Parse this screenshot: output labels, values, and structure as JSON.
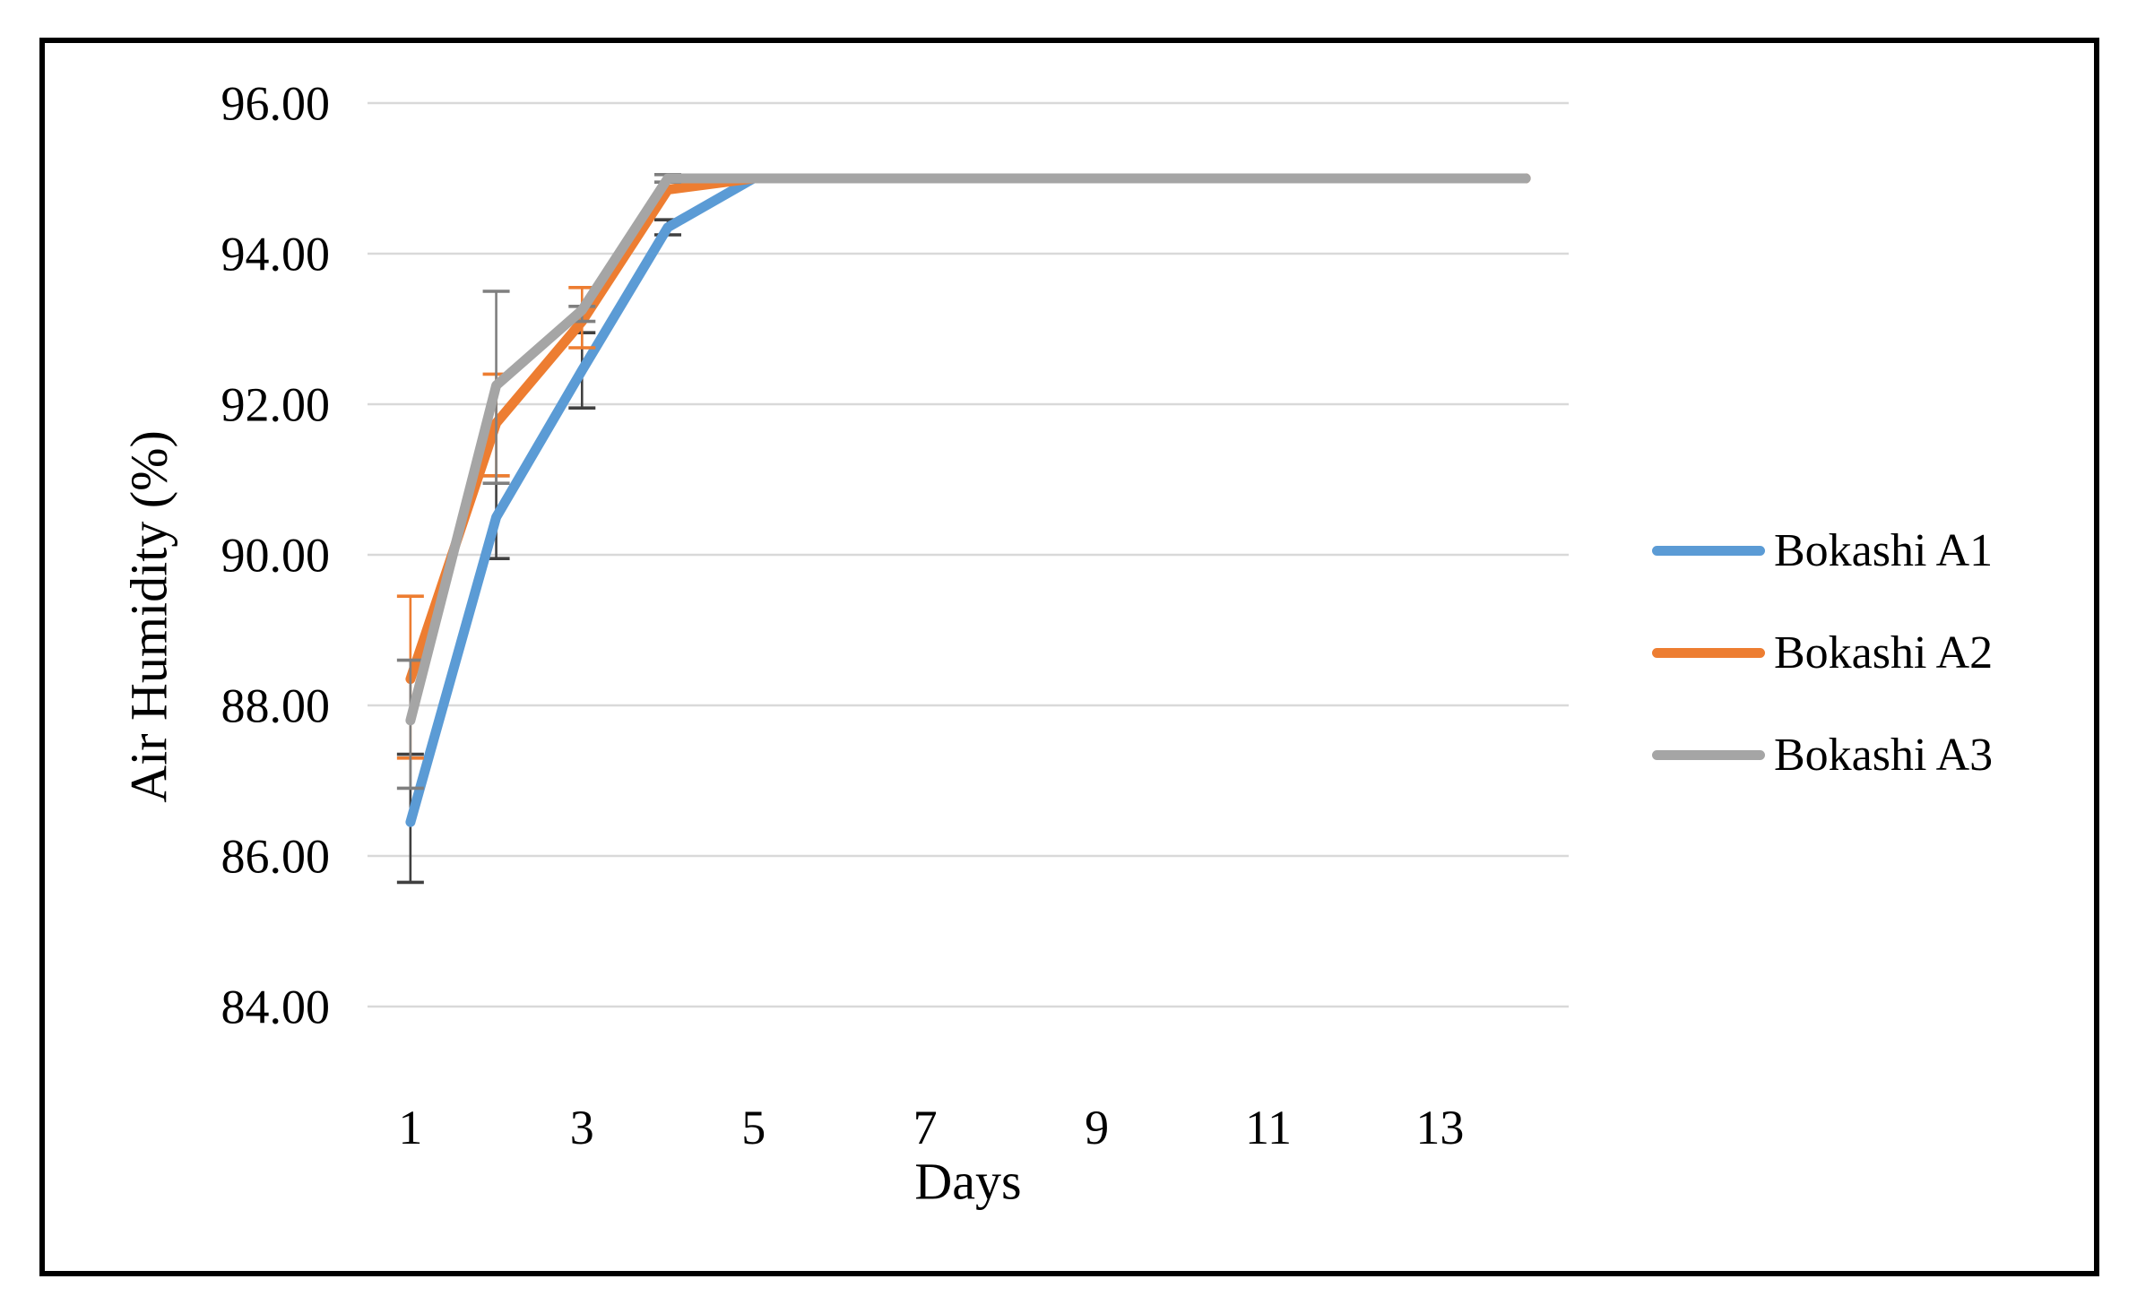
{
  "figure": {
    "background_color": "#FFFFFF",
    "border_color": "#000000"
  },
  "legend": {
    "position": "right"
  },
  "chart_data": {
    "type": "line",
    "title": "",
    "xlabel": "Days",
    "ylabel": "Air Humidity (%)",
    "x": [
      1,
      2,
      3,
      4,
      5,
      6,
      7,
      8,
      9,
      10,
      11,
      12,
      13,
      14
    ],
    "ylim": [
      83,
      96
    ],
    "grid": true,
    "gridline_color": "#D9D9D9",
    "text_color": "#000000",
    "y_gridline_values": [
      84,
      86,
      88,
      90,
      92,
      94,
      96
    ],
    "y_tick_labels": [
      "84.00",
      "86.00",
      "88.00",
      "90.00",
      "92.00",
      "94.00",
      "96.00"
    ],
    "x_tick_values": [
      1,
      3,
      5,
      7,
      9,
      11,
      13
    ],
    "x_tick_labels": [
      "1",
      "3",
      "5",
      "7",
      "9",
      "11",
      "13"
    ],
    "legend_position": "right",
    "series": [
      {
        "name": "Bokashi A1",
        "color": "#5B9BD5",
        "error_color": "#404040",
        "values": [
          86.45,
          90.5,
          92.45,
          94.35,
          95.0,
          95.0,
          95.0,
          95.0,
          95.0,
          95.0,
          95.0,
          95.0,
          95.0,
          95.0
        ],
        "error_bars": [
          {
            "day": 1,
            "low": 85.65,
            "high": 87.35
          },
          {
            "day": 2,
            "low": 89.95,
            "high": 91.05
          },
          {
            "day": 3,
            "low": 91.95,
            "high": 92.95
          },
          {
            "day": 4,
            "low": 94.25,
            "high": 94.45
          }
        ]
      },
      {
        "name": "Bokashi A2",
        "color": "#ED7D31",
        "error_color": "#ED7D31",
        "values": [
          88.35,
          91.75,
          93.1,
          94.85,
          95.0,
          95.0,
          95.0,
          95.0,
          95.0,
          95.0,
          95.0,
          95.0,
          95.0,
          95.0
        ],
        "error_bars": [
          {
            "day": 1,
            "low": 87.3,
            "high": 89.45
          },
          {
            "day": 2,
            "low": 91.05,
            "high": 92.4
          },
          {
            "day": 3,
            "low": 92.75,
            "high": 93.55
          }
        ]
      },
      {
        "name": "Bokashi A3",
        "color": "#A5A5A5",
        "error_color": "#7F7F7F",
        "values": [
          87.8,
          92.25,
          93.25,
          95.0,
          95.0,
          95.0,
          95.0,
          95.0,
          95.0,
          95.0,
          95.0,
          95.0,
          95.0,
          95.0
        ],
        "error_bars": [
          {
            "day": 1,
            "low": 86.9,
            "high": 88.6
          },
          {
            "day": 2,
            "low": 90.95,
            "high": 93.5
          },
          {
            "day": 3,
            "low": 93.1,
            "high": 93.3
          },
          {
            "day": 4,
            "low": 94.95,
            "high": 95.05
          }
        ]
      }
    ]
  }
}
